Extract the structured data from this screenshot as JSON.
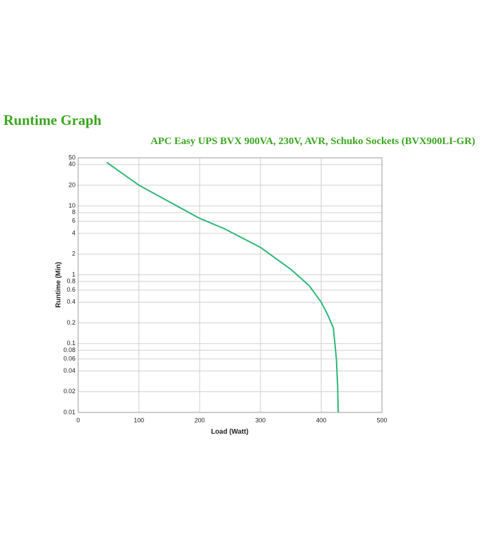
{
  "chart_data": {
    "type": "line",
    "title": "Runtime Graph",
    "subtitle": "APC Easy UPS BVX 900VA, 230V, AVR, Schuko Sockets (BVX900LI-GR)",
    "x_label": "Load (Watt)",
    "y_label": "Runtime (Min)",
    "x": [
      47,
      100,
      200,
      240,
      300,
      350,
      380,
      400,
      410,
      420,
      425,
      427,
      428
    ],
    "values": [
      43,
      20,
      6.6,
      4.7,
      2.5,
      1.2,
      0.7,
      0.4,
      0.27,
      0.17,
      0.06,
      0.025,
      0.01
    ],
    "color": "#2bb673",
    "xlim": [
      0,
      500
    ],
    "xticks": [
      0,
      100,
      200,
      300,
      400,
      500
    ],
    "ylim": [
      0.01,
      50
    ],
    "yticks": [
      0.01,
      0.02,
      0.04,
      0.06,
      0.08,
      0.1,
      0.2,
      0.4,
      0.6,
      0.8,
      1,
      2,
      4,
      6,
      8,
      10,
      20,
      40,
      50
    ],
    "y_scale": "log",
    "grid": true
  }
}
